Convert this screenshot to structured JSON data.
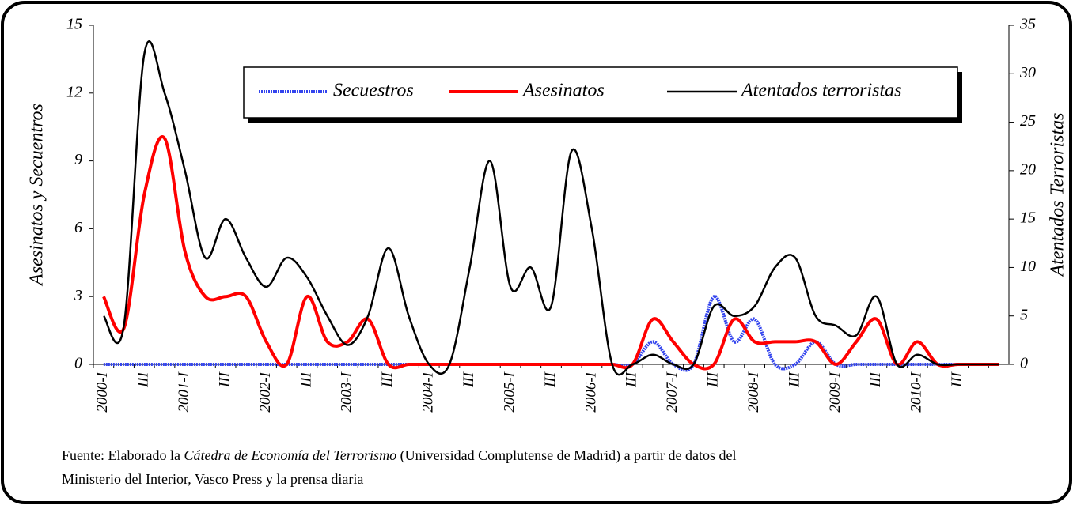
{
  "chart_data": {
    "type": "line",
    "y_label": "Asesinatos y Secuentros",
    "y2_label": "Atentados Terroristas",
    "categories": [
      "2000-I",
      null,
      "III",
      null,
      "2001-I",
      null,
      "III",
      null,
      "2002-I",
      null,
      "III",
      null,
      "2003-I",
      null,
      "III",
      null,
      "2004-I",
      null,
      "III",
      null,
      "2005-I",
      null,
      "III",
      null,
      "2006-I",
      null,
      "III",
      null,
      "2007-I",
      null,
      "III",
      null,
      "2008-I",
      null,
      "III",
      null,
      "2009-I",
      null,
      "III",
      null,
      "2010-I",
      null,
      "III",
      null,
      null
    ],
    "series": [
      {
        "name": "Secuestros",
        "color": "#3344ee",
        "values": [
          0,
          0,
          0,
          0,
          0,
          0,
          0,
          0,
          0,
          0,
          0,
          0,
          0,
          0,
          0,
          0,
          0,
          0,
          0,
          0,
          0,
          0,
          0,
          0,
          0,
          0,
          0,
          1,
          0,
          0,
          3,
          1,
          2,
          0,
          0,
          1,
          0,
          0,
          0,
          0,
          0,
          0,
          0,
          0,
          0
        ]
      },
      {
        "name": "Asesinatos",
        "color": "#ff0000",
        "values": [
          3,
          1.6,
          7.5,
          10,
          5,
          3,
          3,
          3,
          1,
          0,
          3,
          1,
          1,
          2,
          0,
          0,
          0,
          0,
          0,
          0,
          0,
          0,
          0,
          0,
          0,
          0,
          0,
          2,
          1,
          0,
          0,
          2,
          1,
          1,
          1,
          1,
          0,
          1,
          2,
          0,
          1,
          0,
          0,
          0,
          0
        ]
      },
      {
        "name": "Atentados terroristas",
        "color": "#000000",
        "axis": "y2",
        "values": [
          5,
          4,
          32,
          28,
          20,
          11,
          15,
          11,
          8,
          11,
          9,
          5,
          2,
          5,
          12,
          5,
          0,
          0,
          10,
          21,
          8,
          10,
          6,
          22,
          14,
          0,
          0,
          1,
          0,
          0,
          6,
          5,
          6,
          10,
          11,
          5,
          4,
          3,
          7,
          0,
          1,
          0,
          0,
          0,
          0
        ]
      }
    ],
    "ylim": [
      0,
      15
    ],
    "yticks": [
      0,
      3,
      6,
      9,
      12,
      15
    ],
    "y2lim": [
      0,
      35
    ],
    "y2ticks": [
      0,
      5,
      10,
      15,
      20,
      25,
      30,
      35
    ],
    "legend": "top",
    "note": {
      "parts": [
        "Fuente: Elaborado la ",
        "Cátedra de Economía del Terrorismo",
        " (Universidad Complutense de Madrid) a partir de datos del",
        "Ministerio del Interior, Vasco Press y la prensa diaria"
      ]
    }
  }
}
